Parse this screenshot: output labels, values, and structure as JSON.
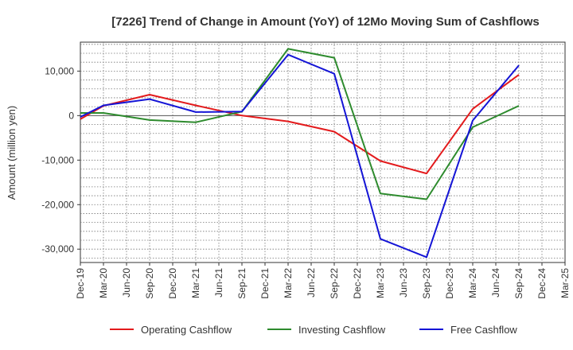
{
  "chart_data": {
    "type": "line",
    "title": "[7226]  Trend of Change in Amount (YoY) of 12Mo Moving Sum of Cashflows",
    "xlabel": "",
    "ylabel": "Amount (million yen)",
    "categories": [
      "Dec-19",
      "Mar-20",
      "Jun-20",
      "Sep-20",
      "Dec-20",
      "Mar-21",
      "Jun-21",
      "Sep-21",
      "Dec-21",
      "Mar-22",
      "Jun-22",
      "Sep-22",
      "Dec-22",
      "Mar-23",
      "Jun-23",
      "Sep-23",
      "Dec-23",
      "Mar-24",
      "Jun-24",
      "Sep-24",
      "Dec-24",
      "Mar-25"
    ],
    "ylim": [
      -33000,
      16500
    ],
    "yticks": [
      10000,
      0,
      -10000,
      -20000,
      -30000
    ],
    "ytick_labels": [
      "10,000",
      "0",
      "-10,000",
      "-20,000",
      "-30,000"
    ],
    "grid": true,
    "legend_position": "bottom",
    "series": [
      {
        "name": "Operating Cashflow",
        "color": "#e31a1c",
        "values": [
          -800,
          2200,
          null,
          4700,
          null,
          2300,
          null,
          0,
          null,
          -1300,
          null,
          -3600,
          null,
          -10200,
          null,
          -13000,
          null,
          1500,
          null,
          9200,
          null,
          null
        ]
      },
      {
        "name": "Investing Cashflow",
        "color": "#2e8b2e",
        "values": [
          600,
          600,
          null,
          -1000,
          null,
          -1500,
          null,
          900,
          null,
          15000,
          null,
          13000,
          null,
          -17500,
          null,
          -18800,
          null,
          -2600,
          null,
          2200,
          null,
          null
        ]
      },
      {
        "name": "Free Cashflow",
        "color": "#1414d6",
        "values": [
          -300,
          2300,
          null,
          3700,
          null,
          800,
          null,
          900,
          null,
          13700,
          null,
          9400,
          null,
          -27700,
          null,
          -31800,
          null,
          -1100,
          null,
          11300,
          null,
          null
        ]
      }
    ]
  }
}
